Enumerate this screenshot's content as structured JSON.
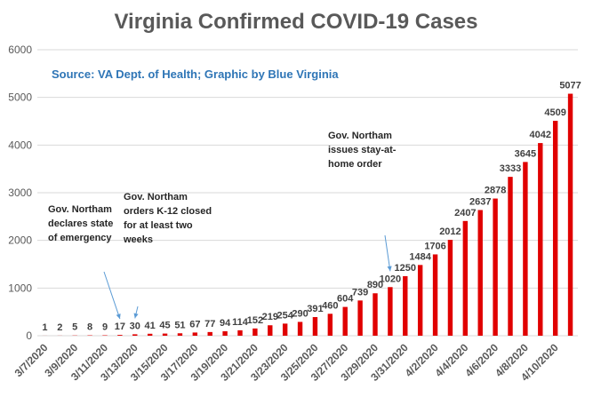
{
  "chart_data": {
    "type": "bar",
    "title": "Virginia Confirmed COVID-19 Cases",
    "subtitle": "Source: VA Dept. of Health; Graphic by Blue Virginia",
    "ylim": [
      0,
      6000
    ],
    "yticks": [
      0,
      1000,
      2000,
      3000,
      4000,
      5000,
      6000
    ],
    "grid": true,
    "bar_color": "#e00000",
    "categories": [
      "3/7/2020",
      "3/8/2020",
      "3/9/2020",
      "3/10/2020",
      "3/11/2020",
      "3/12/2020",
      "3/13/2020",
      "3/14/2020",
      "3/15/2020",
      "3/16/2020",
      "3/17/2020",
      "3/18/2020",
      "3/19/2020",
      "3/20/2020",
      "3/21/2020",
      "3/22/2020",
      "3/23/2020",
      "3/24/2020",
      "3/25/2020",
      "3/26/2020",
      "3/27/2020",
      "3/28/2020",
      "3/29/2020",
      "3/30/2020",
      "3/31/2020",
      "4/1/2020",
      "4/2/2020",
      "4/3/2020",
      "4/4/2020",
      "4/5/2020",
      "4/6/2020",
      "4/7/2020",
      "4/8/2020",
      "4/9/2020",
      "4/10/2020",
      "4/11/2020"
    ],
    "x_tick_labels": [
      "3/7/2020",
      "3/9/2020",
      "3/11/2020",
      "3/13/2020",
      "3/15/2020",
      "3/17/2020",
      "3/19/2020",
      "3/21/2020",
      "3/23/2020",
      "3/25/2020",
      "3/27/2020",
      "3/29/2020",
      "3/31/2020",
      "4/2/2020",
      "4/4/2020",
      "4/6/2020",
      "4/8/2020",
      "4/10/2020"
    ],
    "values": [
      1,
      2,
      5,
      8,
      9,
      17,
      30,
      41,
      45,
      51,
      67,
      77,
      94,
      114,
      152,
      219,
      254,
      290,
      391,
      460,
      604,
      739,
      890,
      1020,
      1250,
      1484,
      1706,
      2012,
      2407,
      2637,
      2878,
      3333,
      3645,
      4042,
      4509,
      5077
    ],
    "annotations": [
      {
        "lines": [
          "Gov. Northam",
          "declares state",
          "of emergency"
        ],
        "arrow_to_category": "3/12/2020"
      },
      {
        "lines": [
          "Gov. Northam",
          "orders K-12 closed",
          "for at least two",
          "weeks"
        ],
        "arrow_to_category": "3/13/2020"
      },
      {
        "lines": [
          "Gov. Northam",
          "issues stay-at-",
          "home order"
        ],
        "arrow_to_category": "3/30/2020"
      }
    ]
  }
}
